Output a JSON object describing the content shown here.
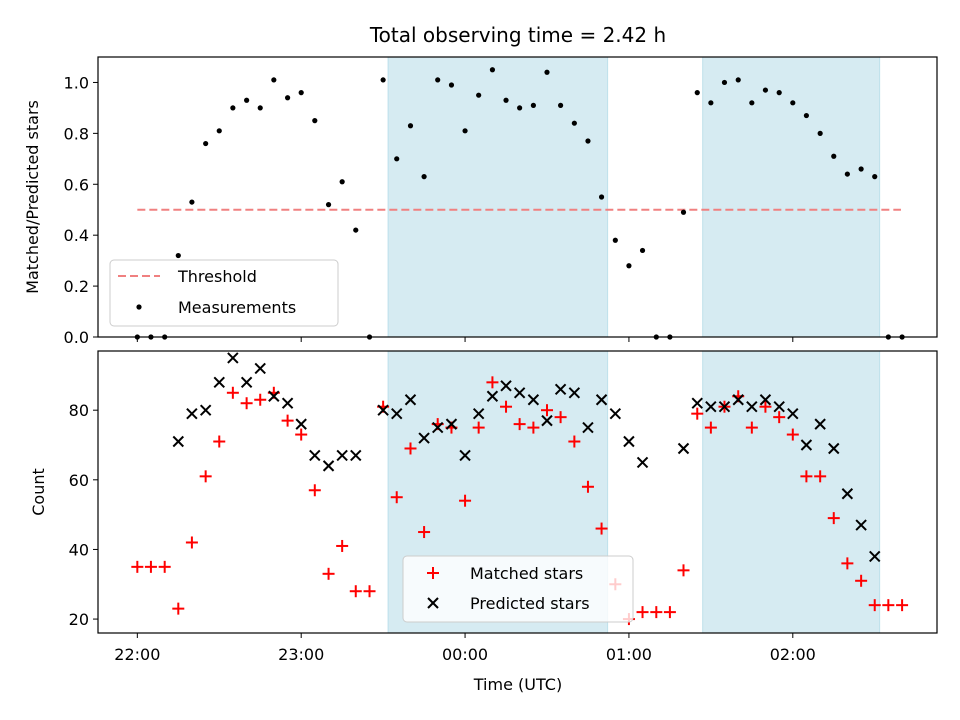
{
  "chart_data": {
    "type": "scatter",
    "title": "Total observing time = 2.42 h",
    "xlabel": "Time (UTC)",
    "x_unit": "hours since 22:00 UTC",
    "x_ticks": [
      {
        "value": 0,
        "label": "22:00"
      },
      {
        "value": 1,
        "label": "23:00"
      },
      {
        "value": 2,
        "label": "00:00"
      },
      {
        "value": 3,
        "label": "01:00"
      },
      {
        "value": 4,
        "label": "02:00"
      }
    ],
    "xlim": [
      -0.24,
      4.88
    ],
    "shaded_intervals": [
      [
        1.53,
        2.87
      ],
      [
        3.45,
        4.53
      ]
    ],
    "shade_color": "#add8e6",
    "panels": [
      {
        "ylabel": "Matched/Predicted stars",
        "ylim": [
          0,
          1.1
        ],
        "y_ticks": [
          0.0,
          0.2,
          0.4,
          0.6,
          0.8,
          1.0
        ],
        "y_tick_labels": [
          "0.0",
          "0.2",
          "0.4",
          "0.6",
          "0.8",
          "1.0"
        ],
        "threshold": {
          "name": "Threshold",
          "value": 0.5,
          "x_range": [
            0,
            4.66
          ],
          "color": "#f08080"
        },
        "series": [
          {
            "name": "Measurements",
            "marker": "dot",
            "color": "#000000",
            "x": [
              0,
              0.083,
              0.167,
              0.25,
              0.333,
              0.417,
              0.5,
              0.583,
              0.667,
              0.75,
              0.833,
              0.917,
              1.0,
              1.083,
              1.167,
              1.25,
              1.333,
              1.417,
              1.5,
              1.583,
              1.667,
              1.75,
              1.833,
              1.917,
              2.0,
              2.083,
              2.167,
              2.25,
              2.333,
              2.417,
              2.5,
              2.583,
              2.667,
              2.75,
              2.833,
              2.917,
              3.0,
              3.083,
              3.167,
              3.25,
              3.333,
              3.417,
              3.5,
              3.583,
              3.667,
              3.75,
              3.833,
              3.917,
              4.0,
              4.083,
              4.167,
              4.25,
              4.333,
              4.417,
              4.5,
              4.583,
              4.667
            ],
            "y": [
              0.0,
              0.0,
              0.0,
              0.32,
              0.53,
              0.76,
              0.81,
              0.9,
              0.93,
              0.9,
              1.01,
              0.94,
              0.96,
              0.85,
              0.52,
              0.61,
              0.42,
              0.0,
              1.01,
              0.7,
              0.83,
              0.63,
              1.01,
              0.99,
              0.81,
              0.95,
              1.05,
              0.93,
              0.9,
              0.91,
              1.04,
              0.91,
              0.84,
              0.77,
              0.55,
              0.38,
              0.28,
              0.34,
              0.0,
              0.0,
              0.49,
              0.96,
              0.92,
              1.0,
              1.01,
              0.92,
              0.97,
              0.96,
              0.92,
              0.87,
              0.8,
              0.71,
              0.64,
              0.66,
              0.63,
              0.0,
              0.0
            ]
          }
        ],
        "legend_location": "lower-left"
      },
      {
        "ylabel": "Count",
        "ylim": [
          16,
          97
        ],
        "y_ticks": [
          20,
          40,
          60,
          80
        ],
        "y_tick_labels": [
          "20",
          "40",
          "60",
          "80"
        ],
        "series": [
          {
            "name": "Matched stars",
            "marker": "plus",
            "color": "#ff0000",
            "x": [
              0,
              0.083,
              0.167,
              0.25,
              0.333,
              0.417,
              0.5,
              0.583,
              0.667,
              0.75,
              0.833,
              0.917,
              1.0,
              1.083,
              1.167,
              1.25,
              1.333,
              1.417,
              1.5,
              1.583,
              1.667,
              1.75,
              1.833,
              1.917,
              2.0,
              2.083,
              2.167,
              2.25,
              2.333,
              2.417,
              2.5,
              2.583,
              2.667,
              2.75,
              2.833,
              2.917,
              3.0,
              3.083,
              3.167,
              3.25,
              3.333,
              3.417,
              3.5,
              3.583,
              3.667,
              3.75,
              3.833,
              3.917,
              4.0,
              4.083,
              4.167,
              4.25,
              4.333,
              4.417,
              4.5,
              4.583,
              4.667
            ],
            "y": [
              35,
              35,
              35,
              23,
              42,
              61,
              71,
              85,
              82,
              83,
              85,
              77,
              73,
              57,
              33,
              41,
              28,
              28,
              81,
              55,
              69,
              45,
              76,
              75,
              54,
              75,
              88,
              81,
              76,
              75,
              80,
              78,
              71,
              58,
              46,
              30,
              20,
              22,
              22,
              22,
              34,
              79,
              75,
              81,
              84,
              75,
              81,
              78,
              73,
              61,
              61,
              49,
              36,
              31,
              24,
              24,
              24
            ]
          },
          {
            "name": "Predicted stars",
            "marker": "x",
            "color": "#000000",
            "x": [
              0.25,
              0.333,
              0.417,
              0.5,
              0.583,
              0.667,
              0.75,
              0.833,
              0.917,
              1.0,
              1.083,
              1.167,
              1.25,
              1.333,
              1.5,
              1.583,
              1.667,
              1.75,
              1.833,
              1.917,
              2.0,
              2.083,
              2.167,
              2.25,
              2.333,
              2.417,
              2.5,
              2.583,
              2.667,
              2.75,
              2.833,
              2.917,
              3.0,
              3.083,
              3.333,
              3.417,
              3.5,
              3.583,
              3.667,
              3.75,
              3.833,
              3.917,
              4.0,
              4.083,
              4.167,
              4.25,
              4.333,
              4.417,
              4.5
            ],
            "y": [
              71,
              79,
              80,
              88,
              95,
              88,
              92,
              84,
              82,
              76,
              67,
              64,
              67,
              67,
              80,
              79,
              83,
              72,
              75,
              76,
              67,
              79,
              84,
              87,
              85,
              83,
              77,
              86,
              85,
              75,
              83,
              79,
              71,
              65,
              69,
              82,
              81,
              81,
              83,
              81,
              83,
              81,
              79,
              70,
              76,
              69,
              56,
              47,
              38
            ]
          }
        ],
        "legend_location": "lower-center"
      }
    ]
  }
}
